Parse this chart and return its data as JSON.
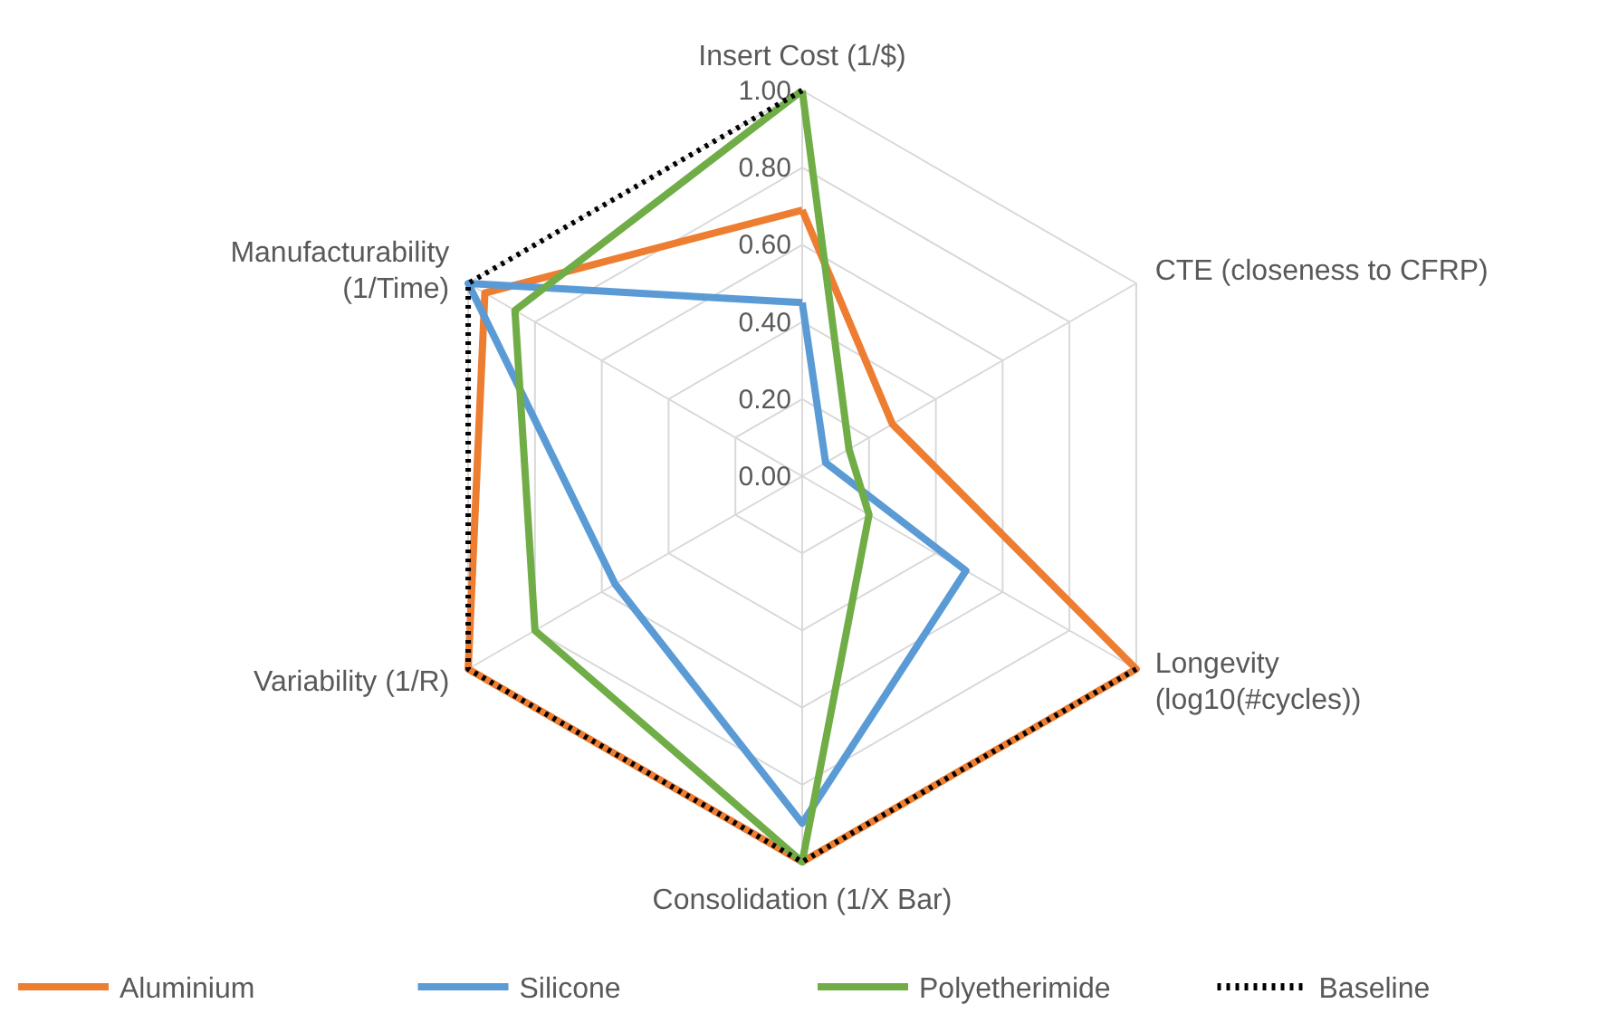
{
  "chart_data": {
    "type": "radar",
    "categories": [
      "Insert Cost (1/$)",
      "CTE (closeness to CFRP)",
      "Longevity\n(log10(#cycles))",
      "Consolidation (1/X Bar)",
      "Variability (1/R)",
      "Manufacturability\n(1/Time)"
    ],
    "series": [
      {
        "name": "Aluminium",
        "color": "#ed7d31",
        "values": [
          0.69,
          0.27,
          1.0,
          1.0,
          1.0,
          0.95
        ]
      },
      {
        "name": "Silicone",
        "color": "#5b9bd5",
        "values": [
          0.45,
          0.07,
          0.49,
          0.9,
          0.56,
          1.0
        ]
      },
      {
        "name": "Polyetherimide",
        "color": "#70ad47",
        "values": [
          1.0,
          0.14,
          0.2,
          1.0,
          0.8,
          0.86
        ]
      },
      {
        "name": "Baseline",
        "color": "#000000",
        "line_style": "dotted",
        "values": [
          1.0,
          null,
          1.0,
          1.0,
          1.0,
          1.0
        ]
      }
    ],
    "ylim": [
      0,
      1
    ],
    "yticks": [
      {
        "value": 0,
        "label": "0.00"
      },
      {
        "value": 0.2,
        "label": "0.20"
      },
      {
        "value": 0.4,
        "label": "0.40"
      },
      {
        "value": 0.6,
        "label": "0.60"
      },
      {
        "value": 0.8,
        "label": "0.80"
      },
      {
        "value": 1,
        "label": "1.00"
      }
    ],
    "grid": true,
    "legend": "bottom",
    "marker": "none"
  }
}
